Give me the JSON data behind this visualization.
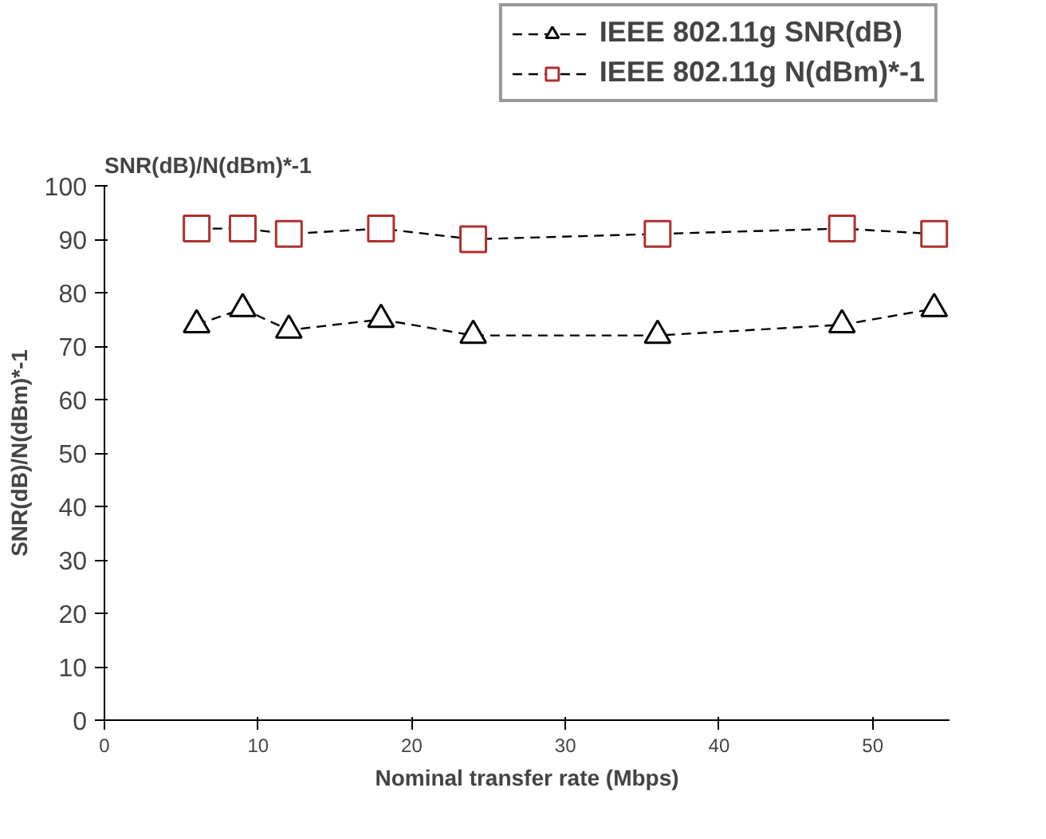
{
  "chart_data": {
    "type": "line",
    "annotations": [
      "SNR(dB)/N(dBm)*-1"
    ],
    "xlabel": "Nominal transfer rate (Mbps)",
    "ylabel": "SNR(dB)/N(dBm)*-1",
    "x": [
      6,
      9,
      12,
      18,
      24,
      36,
      48,
      54
    ],
    "series": [
      {
        "name": "IEEE 802.11g SNR(dB)",
        "color": "#000000",
        "marker": "triangle",
        "values": [
          74,
          77,
          73,
          75,
          72,
          72,
          74,
          77
        ]
      },
      {
        "name": "IEEE 802.11g N(dBm)*-1",
        "color": "#b03030",
        "marker": "square",
        "values": [
          92,
          92,
          91,
          92,
          90,
          91,
          92,
          91
        ]
      }
    ],
    "xlim": [
      0,
      55
    ],
    "ylim": [
      0,
      100
    ],
    "xticks": [
      0,
      10,
      20,
      30,
      40,
      50
    ],
    "yticks": [
      0,
      10,
      20,
      30,
      40,
      50,
      60,
      70,
      80,
      90,
      100
    ],
    "line_style": "dashed",
    "grid": false,
    "legend": "top right"
  }
}
